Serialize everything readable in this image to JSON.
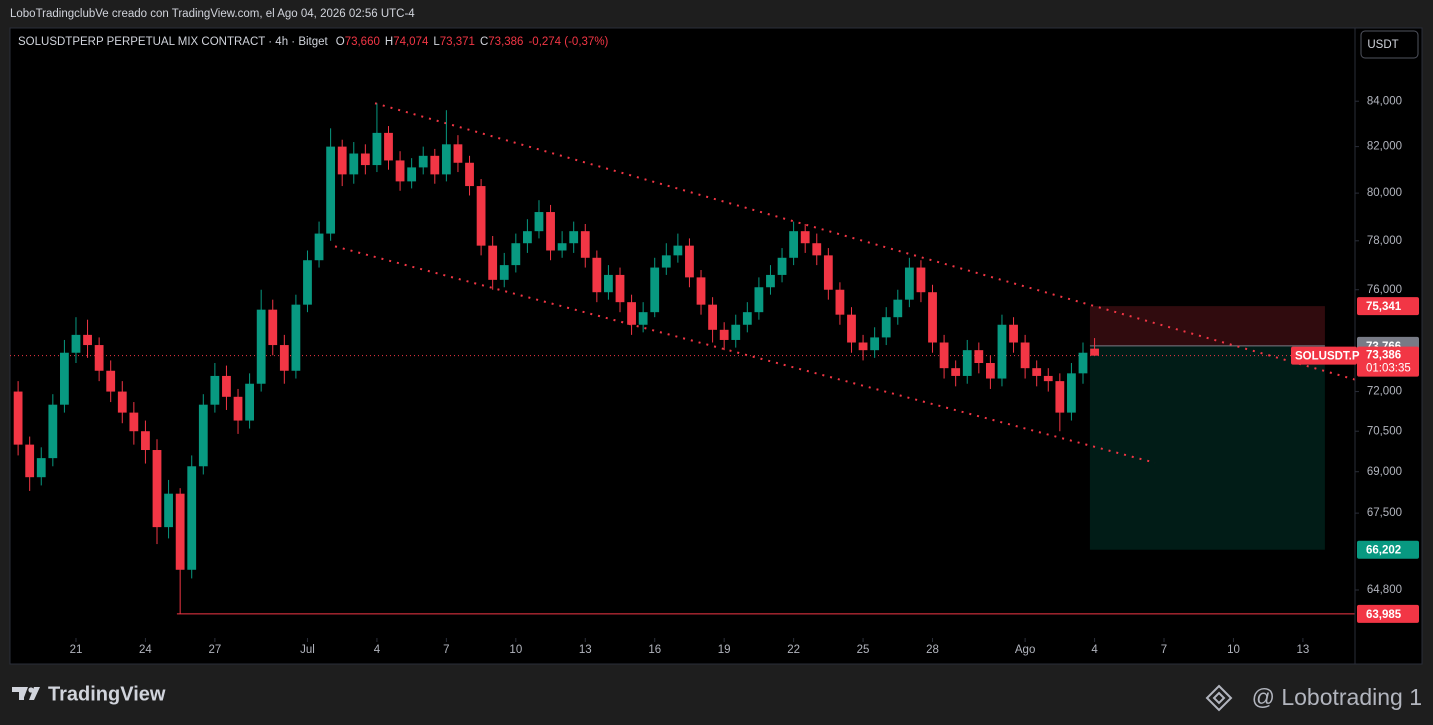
{
  "header": {
    "caption": "LoboTradingclubVe creado con TradingView.com, el Ago 04, 2026 02:56 UTC-4"
  },
  "chart_data": {
    "type": "candlestick",
    "symbol": "SOLUSDTPERP PERPETUAL MIX CONTRACT · 4h · Bitget",
    "ohlc": [
      {
        "key": "O",
        "value": "73,660"
      },
      {
        "key": "H",
        "value": "74,074"
      },
      {
        "key": "L",
        "value": "73,371"
      },
      {
        "key": "C",
        "value": "73,386"
      }
    ],
    "change": "-0,274 (-0,37%)",
    "currency": "USDT",
    "up_color": "#089981",
    "down_color": "#f23645",
    "log_scale": true,
    "grid": false,
    "xlim": [
      -2.85,
      55.25
    ],
    "ylim": [
      62370,
      87330
    ],
    "xticks": [
      {
        "value": 0,
        "label": "21"
      },
      {
        "value": 3,
        "label": "24"
      },
      {
        "value": 6,
        "label": "27"
      },
      {
        "value": 10,
        "label": "Jul"
      },
      {
        "value": 13,
        "label": "4"
      },
      {
        "value": 16,
        "label": "7"
      },
      {
        "value": 19,
        "label": "10"
      },
      {
        "value": 22,
        "label": "13"
      },
      {
        "value": 25,
        "label": "16"
      },
      {
        "value": 28,
        "label": "19"
      },
      {
        "value": 31,
        "label": "22"
      },
      {
        "value": 34,
        "label": "25"
      },
      {
        "value": 37,
        "label": "28"
      },
      {
        "value": 41,
        "label": "Ago"
      },
      {
        "value": 44,
        "label": "4"
      },
      {
        "value": 47,
        "label": "7"
      },
      {
        "value": 50,
        "label": "10"
      },
      {
        "value": 53,
        "label": "13"
      }
    ],
    "yticks": [
      {
        "value": 84000,
        "label": "84,000"
      },
      {
        "value": 82000,
        "label": "82,000"
      },
      {
        "value": 80000,
        "label": "80,000"
      },
      {
        "value": 78000,
        "label": "78,000"
      },
      {
        "value": 76000,
        "label": "76,000"
      },
      {
        "value": 72000,
        "label": "72,000"
      },
      {
        "value": 70500,
        "label": "70,500"
      },
      {
        "value": 69000,
        "label": "69,000"
      },
      {
        "value": 67500,
        "label": "67,500"
      },
      {
        "value": 64800,
        "label": "64,800"
      }
    ],
    "x": [
      -2.5,
      -2,
      -1.5,
      -1,
      -0.5,
      0,
      0.5,
      1,
      1.5,
      2,
      2.5,
      3,
      3.5,
      4,
      4.5,
      5,
      5.5,
      6,
      6.5,
      7,
      7.5,
      8,
      8.5,
      9,
      9.5,
      10,
      10.5,
      11,
      11.5,
      12,
      12.5,
      13,
      13.5,
      14,
      14.5,
      15,
      15.5,
      16,
      16.5,
      17,
      17.5,
      18,
      18.5,
      19,
      19.5,
      20,
      20.5,
      21,
      21.5,
      22,
      22.5,
      23,
      23.5,
      24,
      24.5,
      25,
      25.5,
      26,
      26.5,
      27,
      27.5,
      28,
      28.5,
      29,
      29.5,
      30,
      30.5,
      31,
      31.5,
      32,
      32.5,
      33,
      33.5,
      34,
      34.5,
      35,
      35.5,
      36,
      36.5,
      37,
      37.5,
      38,
      38.5,
      39,
      39.5,
      40,
      40.5,
      41,
      41.5,
      42,
      42.5,
      43,
      43.5,
      44
    ],
    "open": [
      72000,
      70000,
      68800,
      69500,
      71500,
      73500,
      74200,
      73800,
      72800,
      72000,
      71200,
      70500,
      69800,
      67000,
      68200,
      65500,
      69200,
      71500,
      72600,
      71800,
      70900,
      72300,
      75200,
      73800,
      72800,
      75400,
      77200,
      78300,
      82000,
      80800,
      81700,
      81200,
      82600,
      81400,
      80500,
      81100,
      81600,
      80800,
      82100,
      81300,
      80300,
      77800,
      76400,
      77000,
      77900,
      78400,
      79200,
      77600,
      77900,
      78400,
      77300,
      75900,
      76600,
      75500,
      74600,
      75100,
      76900,
      77400,
      77800,
      76500,
      75400,
      74400,
      74000,
      74600,
      75100,
      76100,
      76600,
      77300,
      78400,
      77900,
      77400,
      76000,
      75000,
      73900,
      73600,
      74100,
      74900,
      75600,
      76900,
      75900,
      73900,
      72900,
      72600,
      73600,
      73100,
      72500,
      74600,
      73900,
      72900,
      72600,
      72400,
      71200,
      72700,
      73660
    ],
    "high": [
      72400,
      70300,
      69900,
      71900,
      74000,
      74900,
      74800,
      74100,
      73200,
      72400,
      71600,
      70900,
      70200,
      68700,
      68400,
      69600,
      71900,
      73100,
      73000,
      72100,
      72700,
      76000,
      75600,
      74200,
      75800,
      77600,
      78800,
      82800,
      82300,
      82200,
      82100,
      83900,
      82900,
      81800,
      81500,
      82000,
      81900,
      83600,
      82500,
      81600,
      80600,
      78200,
      77500,
      78300,
      78900,
      79700,
      79500,
      78400,
      78800,
      78700,
      77600,
      77000,
      76900,
      75800,
      75500,
      77300,
      77900,
      78300,
      78100,
      76800,
      75700,
      74700,
      75000,
      75500,
      76500,
      77000,
      77700,
      78800,
      78700,
      78300,
      77700,
      76300,
      75300,
      74200,
      74500,
      75300,
      76000,
      77300,
      77200,
      76200,
      74200,
      73200,
      74000,
      73900,
      73400,
      75000,
      74900,
      74200,
      73200,
      72900,
      72700,
      73100,
      73900,
      74074
    ],
    "low": [
      69600,
      68300,
      68500,
      69200,
      71200,
      73100,
      73300,
      72400,
      71600,
      70800,
      70000,
      69300,
      66400,
      66600,
      63985,
      65200,
      68900,
      71200,
      71300,
      70400,
      70600,
      72000,
      73400,
      72300,
      72500,
      75100,
      76900,
      78000,
      80300,
      80400,
      80800,
      80900,
      81000,
      80100,
      80200,
      80800,
      80400,
      80500,
      80900,
      79900,
      77400,
      76000,
      76100,
      76700,
      77500,
      78100,
      77200,
      77300,
      77500,
      76900,
      75500,
      75600,
      75100,
      74200,
      74300,
      74900,
      76600,
      77100,
      76100,
      75000,
      73900,
      73600,
      73700,
      74300,
      74800,
      75800,
      76300,
      77000,
      77500,
      77000,
      75600,
      74600,
      73500,
      73200,
      73300,
      73800,
      74600,
      75300,
      75500,
      73500,
      72500,
      72200,
      72300,
      72700,
      72100,
      72200,
      73500,
      72500,
      72200,
      72000,
      70500,
      70900,
      72300,
      73371
    ],
    "close": [
      70000,
      68800,
      69500,
      71500,
      73500,
      74200,
      73800,
      72800,
      72000,
      71200,
      70500,
      69800,
      67000,
      68200,
      65500,
      69200,
      71500,
      72600,
      71800,
      70900,
      72300,
      75200,
      73800,
      72800,
      75400,
      77200,
      78300,
      82000,
      80800,
      81700,
      81200,
      82600,
      81400,
      80500,
      81100,
      81600,
      80800,
      82100,
      81300,
      80300,
      77800,
      76400,
      77000,
      77900,
      78400,
      79200,
      77600,
      77900,
      78400,
      77300,
      75900,
      76600,
      75500,
      74600,
      75100,
      76900,
      77400,
      77800,
      76500,
      75400,
      74400,
      74000,
      74600,
      75100,
      76100,
      76600,
      77300,
      78400,
      77900,
      77400,
      76000,
      75000,
      73900,
      73600,
      74100,
      74900,
      75600,
      76900,
      75900,
      73900,
      72900,
      72600,
      73600,
      73100,
      72500,
      74600,
      73900,
      72900,
      72600,
      72400,
      71200,
      72700,
      73500,
      73386
    ],
    "trendlines": [
      {
        "x": [
          12.92,
          55.25
        ],
        "y": [
          83910,
          72460
        ],
        "color": "#f23645"
      },
      {
        "x": [
          11.19,
          46.61
        ],
        "y": [
          77770,
          69330
        ],
        "color": "#f23645"
      }
    ],
    "position": {
      "x": [
        43.8,
        53.95
      ],
      "entry": {
        "value": 73766,
        "label": "73,766"
      },
      "stop": {
        "value": 75341,
        "label": "75,341"
      },
      "target": {
        "value": 66202,
        "label": "66,202"
      }
    },
    "last_price": {
      "value": 73386,
      "label": "73,386",
      "symbol": "SOLUSDT.P",
      "countdown": "01:03:35"
    },
    "hline": {
      "x": 4.36,
      "value": 63985,
      "label": "63,985"
    }
  },
  "footer": {
    "brand": "TradingView",
    "author": "@ Lobotrading 1"
  }
}
